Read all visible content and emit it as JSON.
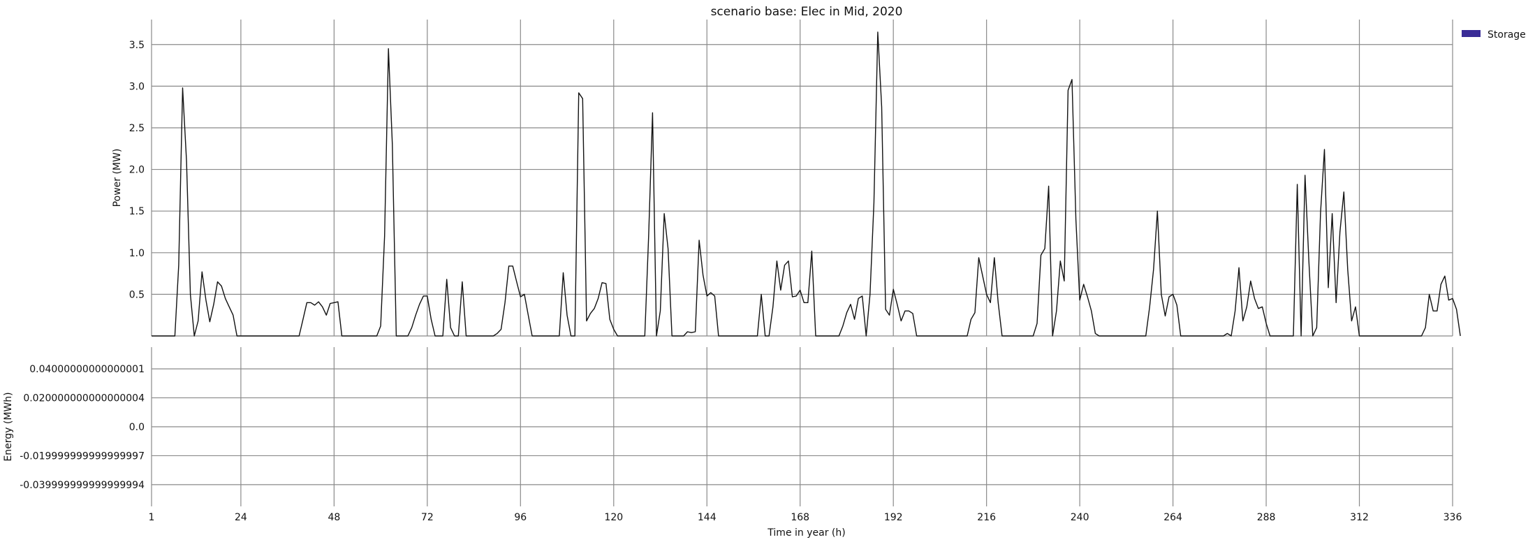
{
  "chart_data": {
    "title": "scenario base: Elec in Mid, 2020",
    "xlabel": "Time in year (h)",
    "x_ticks": [
      1,
      24,
      48,
      72,
      96,
      120,
      144,
      168,
      192,
      216,
      240,
      264,
      288,
      312,
      336
    ],
    "xlim": [
      1,
      336
    ],
    "legend": {
      "placement": "top-right",
      "entries": [
        {
          "name": "Storage",
          "color": "#3a2c97"
        }
      ]
    },
    "panels": [
      {
        "type": "line",
        "ylabel": "Power (MW)",
        "ylim": [
          0,
          3.8
        ],
        "y_ticks": [
          0.5,
          1.0,
          1.5,
          2.0,
          2.5,
          3.0,
          3.5
        ],
        "y_tick_labels": [
          "0.5",
          "1.0",
          "1.5",
          "2.0",
          "2.5",
          "3.0",
          "3.5"
        ],
        "series": [
          {
            "values": [
              0,
              0,
              0,
              0,
              0,
              0,
              0,
              0.85,
              2.98,
              2.1,
              0.5,
              0,
              0.18,
              0.77,
              0.43,
              0.17,
              0.38,
              0.65,
              0.6,
              0.45,
              0.35,
              0.25,
              0,
              0,
              0,
              0,
              0,
              0,
              0,
              0,
              0,
              0,
              0,
              0,
              0,
              0,
              0,
              0,
              0,
              0.2,
              0.4,
              0.4,
              0.37,
              0.41,
              0.35,
              0.25,
              0.39,
              0.4,
              0.41,
              0,
              0,
              0,
              0,
              0,
              0,
              0,
              0,
              0,
              0,
              0.12,
              1.2,
              3.45,
              2.3,
              0,
              0,
              0,
              0,
              0.1,
              0.25,
              0.38,
              0.48,
              0.48,
              0.2,
              0,
              0,
              0,
              0.68,
              0.1,
              0,
              0,
              0.65,
              0,
              0,
              0,
              0,
              0,
              0,
              0,
              0,
              0.03,
              0.08,
              0.4,
              0.84,
              0.84,
              0.65,
              0.47,
              0.5,
              0.25,
              0,
              0,
              0,
              0,
              0,
              0,
              0,
              0,
              0.76,
              0.25,
              0,
              0,
              2.92,
              2.85,
              0.18,
              0.27,
              0.33,
              0.45,
              0.64,
              0.63,
              0.2,
              0.08,
              0,
              0,
              0,
              0,
              0,
              0,
              0,
              0,
              1.2,
              2.68,
              0,
              0.3,
              1.47,
              1.05,
              0,
              0,
              0,
              0,
              0.05,
              0.04,
              0.05,
              1.15,
              0.73,
              0.48,
              0.52,
              0.48,
              0,
              0,
              0,
              0,
              0,
              0,
              0,
              0,
              0,
              0,
              0,
              0.5,
              0,
              0,
              0.35,
              0.9,
              0.55,
              0.85,
              0.9,
              0.47,
              0.48,
              0.55,
              0.4,
              0.4,
              1.02,
              0,
              0,
              0,
              0,
              0,
              0,
              0,
              0.12,
              0.28,
              0.38,
              0.2,
              0.45,
              0.48,
              0,
              0.5,
              1.6,
              3.65,
              2.75,
              0.32,
              0.25,
              0.56,
              0.38,
              0.18,
              0.3,
              0.3,
              0.27,
              0,
              0,
              0,
              0,
              0,
              0,
              0,
              0,
              0,
              0,
              0,
              0,
              0,
              0,
              0.2,
              0.28,
              0.94,
              0.72,
              0.5,
              0.4,
              0.94,
              0.4,
              0,
              0,
              0,
              0,
              0,
              0,
              0,
              0,
              0,
              0.15,
              0.97,
              1.05,
              1.8,
              0,
              0.3,
              0.9,
              0.66,
              2.95,
              3.08,
              1.4,
              0.43,
              0.62,
              0.47,
              0.3,
              0.03,
              0,
              0,
              0,
              0,
              0,
              0,
              0,
              0,
              0,
              0,
              0,
              0,
              0,
              0.35,
              0.8,
              1.5,
              0.5,
              0.24,
              0.47,
              0.5,
              0.37,
              0,
              0,
              0,
              0,
              0,
              0,
              0,
              0,
              0,
              0,
              0,
              0,
              0.03,
              0,
              0.3,
              0.82,
              0.18,
              0.35,
              0.66,
              0.45,
              0.33,
              0.35,
              0.15,
              0,
              0,
              0,
              0,
              0,
              0,
              0,
              1.82,
              0,
              1.93,
              0.9,
              0,
              0.1,
              1.48,
              2.24,
              0.58,
              1.47,
              0.4,
              1.25,
              1.73,
              0.8,
              0.18,
              0.35,
              0,
              0,
              0,
              0,
              0,
              0,
              0,
              0,
              0,
              0,
              0,
              0,
              0,
              0,
              0,
              0,
              0,
              0.1,
              0.5,
              0.3,
              0.3,
              0.62,
              0.72,
              0.43,
              0.45,
              0.32,
              0
            ]
          }
        ]
      },
      {
        "type": "line",
        "ylabel": "Energy (MWh)",
        "ylim": [
          -0.055,
          0.055
        ],
        "y_ticks": [
          0.04,
          0.02,
          0.0,
          -0.02,
          -0.04
        ],
        "y_tick_labels": [
          "0.04000000000000001",
          "0.020000000000000004",
          "0.0",
          "-0.019999999999999997",
          "-0.039999999999999994"
        ],
        "series": []
      }
    ]
  }
}
